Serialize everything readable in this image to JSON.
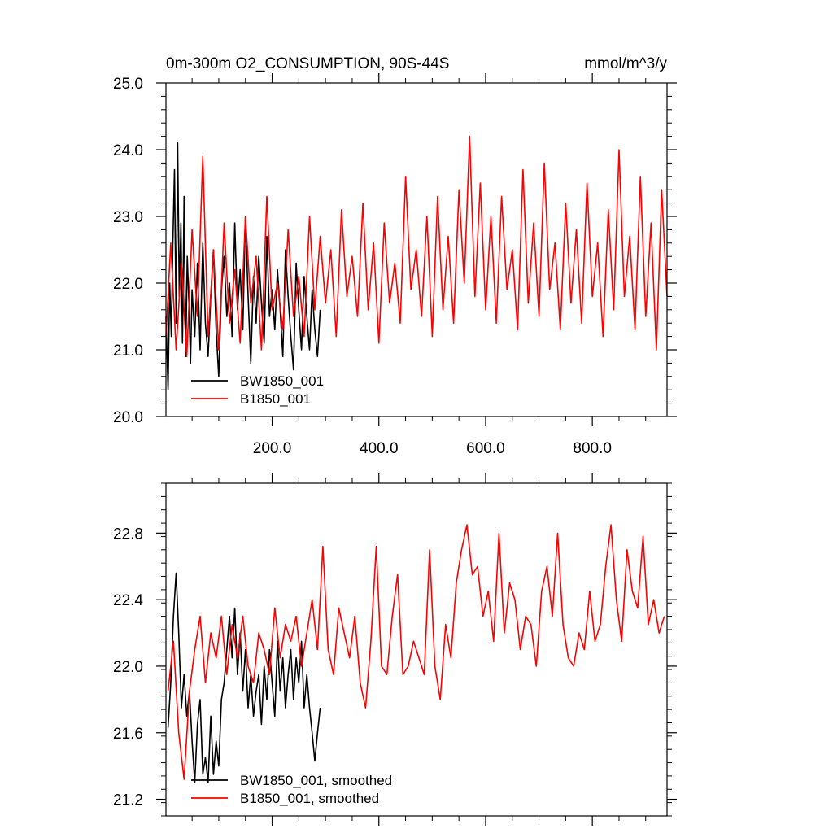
{
  "chart_data": [
    {
      "type": "line",
      "title": "0m-300m O2_CONSUMPTION, 90S-44S",
      "units": "mmol/m^3/y",
      "xlim": [
        1,
        940
      ],
      "ylim": [
        20.0,
        25.0
      ],
      "x_ticks": [
        200,
        400,
        600,
        800
      ],
      "x_tick_labels": [
        "200.0",
        "400.0",
        "600.0",
        "800.0"
      ],
      "y_ticks": [
        20,
        21,
        22,
        23,
        24,
        25
      ],
      "y_tick_labels": [
        "20.0",
        "21.0",
        "22.0",
        "23.0",
        "24.0",
        "25.0"
      ],
      "grid": false,
      "legend_position": "bottom-left",
      "series": [
        {
          "name": "BW1850_001",
          "color": "#000000",
          "x": [
            1,
            5,
            8,
            11,
            14,
            17,
            20,
            23,
            26,
            29,
            32,
            35,
            38,
            41,
            44,
            47,
            50,
            55,
            60,
            65,
            70,
            75,
            80,
            85,
            90,
            95,
            100,
            105,
            110,
            115,
            120,
            125,
            130,
            135,
            140,
            145,
            150,
            155,
            160,
            165,
            170,
            175,
            180,
            185,
            190,
            195,
            200,
            205,
            210,
            215,
            220,
            225,
            230,
            235,
            240,
            245,
            250,
            255,
            260,
            265,
            270,
            275,
            280,
            285,
            290
          ],
          "values": [
            21.5,
            20.4,
            22.0,
            21.2,
            22.6,
            23.7,
            21.4,
            24.1,
            21.8,
            22.9,
            21.1,
            23.3,
            20.9,
            22.4,
            21.7,
            20.8,
            21.9,
            21.2,
            22.3,
            21.0,
            22.6,
            21.4,
            20.9,
            21.8,
            22.5,
            21.3,
            20.6,
            21.9,
            22.4,
            21.5,
            22.0,
            21.2,
            22.9,
            21.6,
            22.2,
            21.3,
            23.0,
            21.8,
            20.8,
            22.1,
            21.4,
            22.4,
            21.7,
            21.1,
            22.7,
            21.5,
            21.9,
            21.3,
            22.2,
            21.6,
            20.9,
            22.5,
            21.8,
            21.2,
            20.7,
            22.3,
            21.6,
            21.0,
            22.1,
            21.5,
            21.0,
            21.9,
            21.3,
            20.9,
            21.6
          ]
        },
        {
          "name": "B1850_001",
          "color": "#ff0000",
          "x": [
            1,
            10,
            20,
            30,
            40,
            50,
            60,
            70,
            80,
            90,
            100,
            110,
            120,
            130,
            140,
            150,
            160,
            170,
            180,
            190,
            200,
            210,
            220,
            230,
            240,
            250,
            260,
            270,
            280,
            290,
            300,
            310,
            320,
            330,
            340,
            350,
            360,
            370,
            380,
            390,
            400,
            410,
            420,
            430,
            440,
            450,
            460,
            470,
            480,
            490,
            500,
            510,
            520,
            530,
            540,
            550,
            560,
            570,
            580,
            590,
            600,
            610,
            620,
            630,
            640,
            650,
            660,
            670,
            680,
            690,
            700,
            710,
            720,
            730,
            740,
            750,
            760,
            770,
            780,
            790,
            800,
            810,
            820,
            830,
            840,
            850,
            860,
            870,
            880,
            890,
            900,
            910,
            920,
            930,
            940
          ],
          "values": [
            21.2,
            22.6,
            21.0,
            22.3,
            20.9,
            22.8,
            21.5,
            23.9,
            21.2,
            22.5,
            21.0,
            22.9,
            21.4,
            22.2,
            21.1,
            23.0,
            21.7,
            22.4,
            21.0,
            23.3,
            21.6,
            22.0,
            21.3,
            22.8,
            21.5,
            22.1,
            21.2,
            23.0,
            21.6,
            22.7,
            21.7,
            22.5,
            21.2,
            23.1,
            21.8,
            22.4,
            21.5,
            23.2,
            21.6,
            22.6,
            21.1,
            22.9,
            21.7,
            22.3,
            21.4,
            23.6,
            21.9,
            22.5,
            21.5,
            23.0,
            21.2,
            23.3,
            21.6,
            22.7,
            21.4,
            23.4,
            22.0,
            24.2,
            21.8,
            23.5,
            21.6,
            23.0,
            21.4,
            23.3,
            21.9,
            22.5,
            21.3,
            23.7,
            21.7,
            22.9,
            21.5,
            23.8,
            21.9,
            22.6,
            21.3,
            23.2,
            21.7,
            22.8,
            21.4,
            23.5,
            21.8,
            22.6,
            21.2,
            23.1,
            21.6,
            24.0,
            21.8,
            22.7,
            21.3,
            23.6,
            21.5,
            22.9,
            21.0,
            23.4,
            21.8
          ]
        }
      ]
    },
    {
      "type": "line",
      "xlim": [
        1,
        940
      ],
      "ylim": [
        21.1,
        23.1
      ],
      "x_ticks": [
        200,
        400,
        600,
        800
      ],
      "y_ticks": [
        21.2,
        21.6,
        22.0,
        22.4,
        22.8
      ],
      "y_tick_labels": [
        "21.2",
        "21.6",
        "22.0",
        "22.4",
        "22.8"
      ],
      "grid": false,
      "legend_position": "bottom-left",
      "series": [
        {
          "name": "BW1850_001, smoothed",
          "color": "#000000",
          "x": [
            5,
            10,
            15,
            20,
            25,
            30,
            35,
            40,
            45,
            50,
            55,
            60,
            65,
            70,
            75,
            80,
            85,
            90,
            95,
            100,
            105,
            110,
            115,
            120,
            125,
            130,
            135,
            140,
            145,
            150,
            155,
            160,
            165,
            170,
            175,
            180,
            185,
            190,
            195,
            200,
            205,
            210,
            215,
            220,
            225,
            230,
            235,
            240,
            245,
            250,
            255,
            260,
            265,
            270,
            275,
            280,
            285,
            290
          ],
          "values": [
            21.63,
            21.9,
            22.3,
            22.56,
            22.2,
            21.75,
            21.95,
            21.7,
            21.85,
            21.55,
            21.3,
            21.65,
            21.8,
            21.35,
            21.45,
            21.3,
            21.7,
            21.35,
            21.55,
            21.4,
            21.8,
            21.9,
            22.1,
            22.3,
            22.05,
            22.35,
            21.95,
            22.2,
            21.85,
            22.1,
            21.75,
            21.95,
            21.7,
            21.85,
            21.95,
            21.65,
            22.0,
            21.8,
            22.1,
            21.9,
            21.7,
            22.15,
            21.85,
            22.05,
            21.75,
            21.95,
            22.1,
            21.8,
            22.05,
            21.9,
            22.15,
            21.75,
            21.95,
            21.75,
            21.6,
            21.43,
            21.6,
            21.75
          ]
        },
        {
          "name": "B1850_001, smoothed",
          "color": "#ff0000",
          "x": [
            5,
            15,
            25,
            35,
            45,
            55,
            65,
            75,
            85,
            95,
            105,
            115,
            125,
            135,
            145,
            155,
            165,
            175,
            185,
            195,
            205,
            215,
            225,
            235,
            245,
            255,
            265,
            275,
            285,
            295,
            305,
            315,
            325,
            335,
            345,
            355,
            365,
            375,
            385,
            395,
            405,
            415,
            425,
            435,
            445,
            455,
            465,
            475,
            485,
            495,
            505,
            515,
            525,
            535,
            545,
            555,
            565,
            575,
            585,
            595,
            605,
            615,
            625,
            635,
            645,
            655,
            665,
            675,
            685,
            695,
            705,
            715,
            725,
            735,
            745,
            755,
            765,
            775,
            785,
            795,
            805,
            815,
            825,
            835,
            845,
            855,
            865,
            875,
            885,
            895,
            905,
            915,
            925,
            935
          ],
          "values": [
            21.85,
            22.15,
            21.6,
            21.32,
            21.85,
            22.1,
            22.3,
            21.9,
            22.2,
            22.05,
            22.3,
            21.95,
            22.25,
            22.05,
            22.3,
            22.0,
            21.9,
            22.2,
            22.1,
            21.95,
            22.35,
            22.05,
            22.25,
            22.15,
            22.3,
            22.0,
            22.2,
            22.4,
            22.1,
            22.72,
            22.1,
            21.95,
            22.35,
            22.2,
            22.05,
            22.3,
            21.9,
            21.75,
            22.15,
            22.72,
            22.0,
            21.95,
            22.3,
            22.55,
            21.95,
            22.0,
            22.15,
            22.05,
            21.95,
            22.7,
            22.0,
            21.8,
            22.25,
            22.05,
            22.5,
            22.7,
            22.85,
            22.55,
            22.6,
            22.3,
            22.45,
            22.15,
            22.8,
            22.2,
            22.5,
            22.4,
            22.1,
            22.3,
            22.25,
            22.0,
            22.45,
            22.6,
            22.3,
            22.8,
            22.25,
            22.05,
            22.0,
            22.2,
            22.1,
            22.45,
            22.15,
            22.25,
            22.6,
            22.85,
            22.4,
            22.15,
            22.7,
            22.45,
            22.35,
            22.78,
            22.25,
            22.4,
            22.2,
            22.3
          ]
        }
      ]
    }
  ]
}
